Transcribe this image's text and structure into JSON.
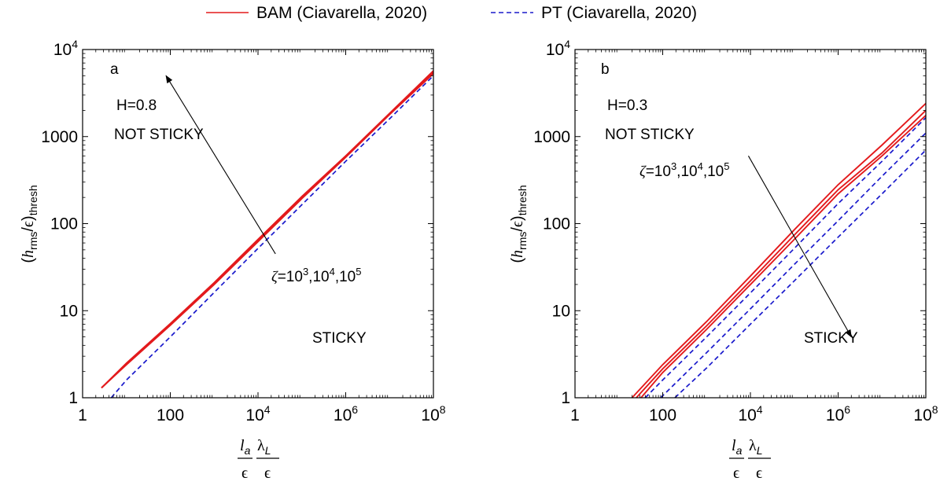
{
  "legend": {
    "entries": [
      {
        "label": "BAM (Ciavarella, 2020)",
        "color": "#e31a1c",
        "style": "solid"
      },
      {
        "label": "PT (Ciavarella, 2020)",
        "color": "#1a1acc",
        "style": "dashed"
      }
    ],
    "placement": "top-center"
  },
  "chart_data": [
    {
      "type": "line",
      "panel_label": "a",
      "xscale": "log",
      "yscale": "log",
      "xlim": [
        1,
        100000000
      ],
      "ylim": [
        1,
        10000
      ],
      "xticks": [
        1,
        100,
        10000,
        1000000,
        100000000
      ],
      "xtick_labels": [
        {
          "base": "1",
          "exp": ""
        },
        {
          "base": "100",
          "exp": ""
        },
        {
          "base": "10",
          "exp": "4"
        },
        {
          "base": "10",
          "exp": "6"
        },
        {
          "base": "10",
          "exp": "8"
        }
      ],
      "yticks": [
        1,
        10,
        100,
        1000,
        10000
      ],
      "ytick_labels": [
        {
          "base": "1",
          "exp": ""
        },
        {
          "base": "10",
          "exp": ""
        },
        {
          "base": "100",
          "exp": ""
        },
        {
          "base": "1000",
          "exp": ""
        },
        {
          "base": "10",
          "exp": "4"
        }
      ],
      "ylabel": {
        "open": "(",
        "h": "h",
        "sub": "rms",
        "mid": "/",
        "eps": "ϵ",
        "close": ")",
        "sub2": "thresh"
      },
      "xlabel": {
        "n1": "l",
        "n1sub": "a",
        "n2": "λ",
        "n2sub": "L",
        "den": "ϵ"
      },
      "annotations": [
        {
          "text": "H=0.8"
        },
        {
          "text": "NOT STICKY"
        },
        {
          "text": "STICKY"
        }
      ],
      "arrow_label": {
        "zeta": "ζ",
        "eq": "=10",
        "e1": "3",
        "c1": ",10",
        "e2": "4",
        "c2": ",10",
        "e3": "5"
      },
      "arrow": {
        "from": [
          25000,
          45
        ],
        "to": [
          80,
          5000
        ]
      },
      "series": [
        {
          "group": "BAM",
          "color": "#e31a1c",
          "style": "solid",
          "x": [
            2.7,
            10,
            100,
            1000,
            10000,
            100000,
            1000000,
            10000000,
            100000000
          ],
          "y": [
            1.3,
            2.5,
            7.1,
            21,
            66,
            205,
            600,
            1850,
            5700
          ]
        },
        {
          "group": "BAM",
          "color": "#e31a1c",
          "style": "solid",
          "x": [
            2.7,
            10,
            100,
            1000,
            10000,
            100000,
            1000000,
            10000000,
            100000000
          ],
          "y": [
            1.3,
            2.45,
            6.9,
            20.5,
            64,
            198,
            590,
            1820,
            5500
          ]
        },
        {
          "group": "BAM",
          "color": "#e31a1c",
          "style": "solid",
          "x": [
            2.7,
            10,
            100,
            1000,
            10000,
            100000,
            1000000,
            10000000,
            100000000
          ],
          "y": [
            1.3,
            2.4,
            6.8,
            20,
            62,
            194,
            580,
            1790,
            5300
          ]
        },
        {
          "group": "PT",
          "color": "#1a1acc",
          "style": "dashed",
          "x": [
            4.5,
            10,
            100,
            1000,
            10000,
            100000,
            1000000,
            10000000,
            100000000
          ],
          "y": [
            1,
            1.6,
            5,
            16.2,
            52,
            165,
            520,
            1600,
            5000
          ]
        }
      ]
    },
    {
      "type": "line",
      "panel_label": "b",
      "xscale": "log",
      "yscale": "log",
      "xlim": [
        1,
        100000000
      ],
      "ylim": [
        1,
        10000
      ],
      "xticks": [
        1,
        100,
        10000,
        1000000,
        100000000
      ],
      "xtick_labels": [
        {
          "base": "1",
          "exp": ""
        },
        {
          "base": "100",
          "exp": ""
        },
        {
          "base": "10",
          "exp": "4"
        },
        {
          "base": "10",
          "exp": "6"
        },
        {
          "base": "10",
          "exp": "8"
        }
      ],
      "yticks": [
        1,
        10,
        100,
        1000,
        10000
      ],
      "ytick_labels": [
        {
          "base": "1",
          "exp": ""
        },
        {
          "base": "10",
          "exp": ""
        },
        {
          "base": "100",
          "exp": ""
        },
        {
          "base": "1000",
          "exp": ""
        },
        {
          "base": "10",
          "exp": "4"
        }
      ],
      "ylabel": {
        "open": "(",
        "h": "h",
        "sub": "rms",
        "mid": "/",
        "eps": "ϵ",
        "close": ")",
        "sub2": "thresh"
      },
      "xlabel": {
        "n1": "l",
        "n1sub": "a",
        "n2": "λ",
        "n2sub": "L",
        "den": "ϵ"
      },
      "annotations": [
        {
          "text": "H=0.3"
        },
        {
          "text": "NOT STICKY"
        },
        {
          "text": "STICKY"
        }
      ],
      "arrow_label": {
        "zeta": "ζ",
        "eq": "=10",
        "e1": "3",
        "c1": ",10",
        "e2": "4",
        "c2": ",10",
        "e3": "5"
      },
      "arrow": {
        "from": [
          9000,
          600
        ],
        "to": [
          2000000,
          5
        ]
      },
      "series": [
        {
          "group": "BAM",
          "color": "#e31a1c",
          "style": "solid",
          "x": [
            20,
            100,
            1000,
            10000,
            100000,
            1000000,
            10000000,
            100000000
          ],
          "y": [
            1,
            2.4,
            7.5,
            25,
            85,
            280,
            800,
            2400
          ]
        },
        {
          "group": "BAM",
          "color": "#e31a1c",
          "style": "solid",
          "x": [
            25,
            100,
            1000,
            10000,
            100000,
            1000000,
            10000000,
            100000000
          ],
          "y": [
            1,
            2.15,
            6.7,
            22,
            74,
            245,
            650,
            2000
          ]
        },
        {
          "group": "BAM",
          "color": "#e31a1c",
          "style": "solid",
          "x": [
            32,
            100,
            1000,
            10000,
            100000,
            1000000,
            10000000,
            100000000
          ],
          "y": [
            1,
            1.95,
            6.1,
            20,
            66,
            220,
            600,
            1750
          ]
        },
        {
          "group": "PT",
          "color": "#1a1acc",
          "style": "dashed",
          "x": [
            40,
            100,
            1000,
            10000,
            100000,
            1000000,
            10000000,
            100000000
          ],
          "y": [
            1,
            1.6,
            5,
            16,
            52,
            170,
            520,
            1650
          ]
        },
        {
          "group": "PT",
          "color": "#1a1acc",
          "style": "dashed",
          "x": [
            90,
            1000,
            10000,
            100000,
            1000000,
            10000000,
            100000000
          ],
          "y": [
            1,
            3.3,
            10.5,
            34,
            108,
            350,
            1100
          ]
        },
        {
          "group": "PT",
          "color": "#1a1acc",
          "style": "dashed",
          "x": [
            190,
            1000,
            10000,
            100000,
            1000000,
            10000000,
            100000000
          ],
          "y": [
            1,
            2.2,
            7,
            22,
            70,
            220,
            700
          ]
        }
      ]
    }
  ]
}
